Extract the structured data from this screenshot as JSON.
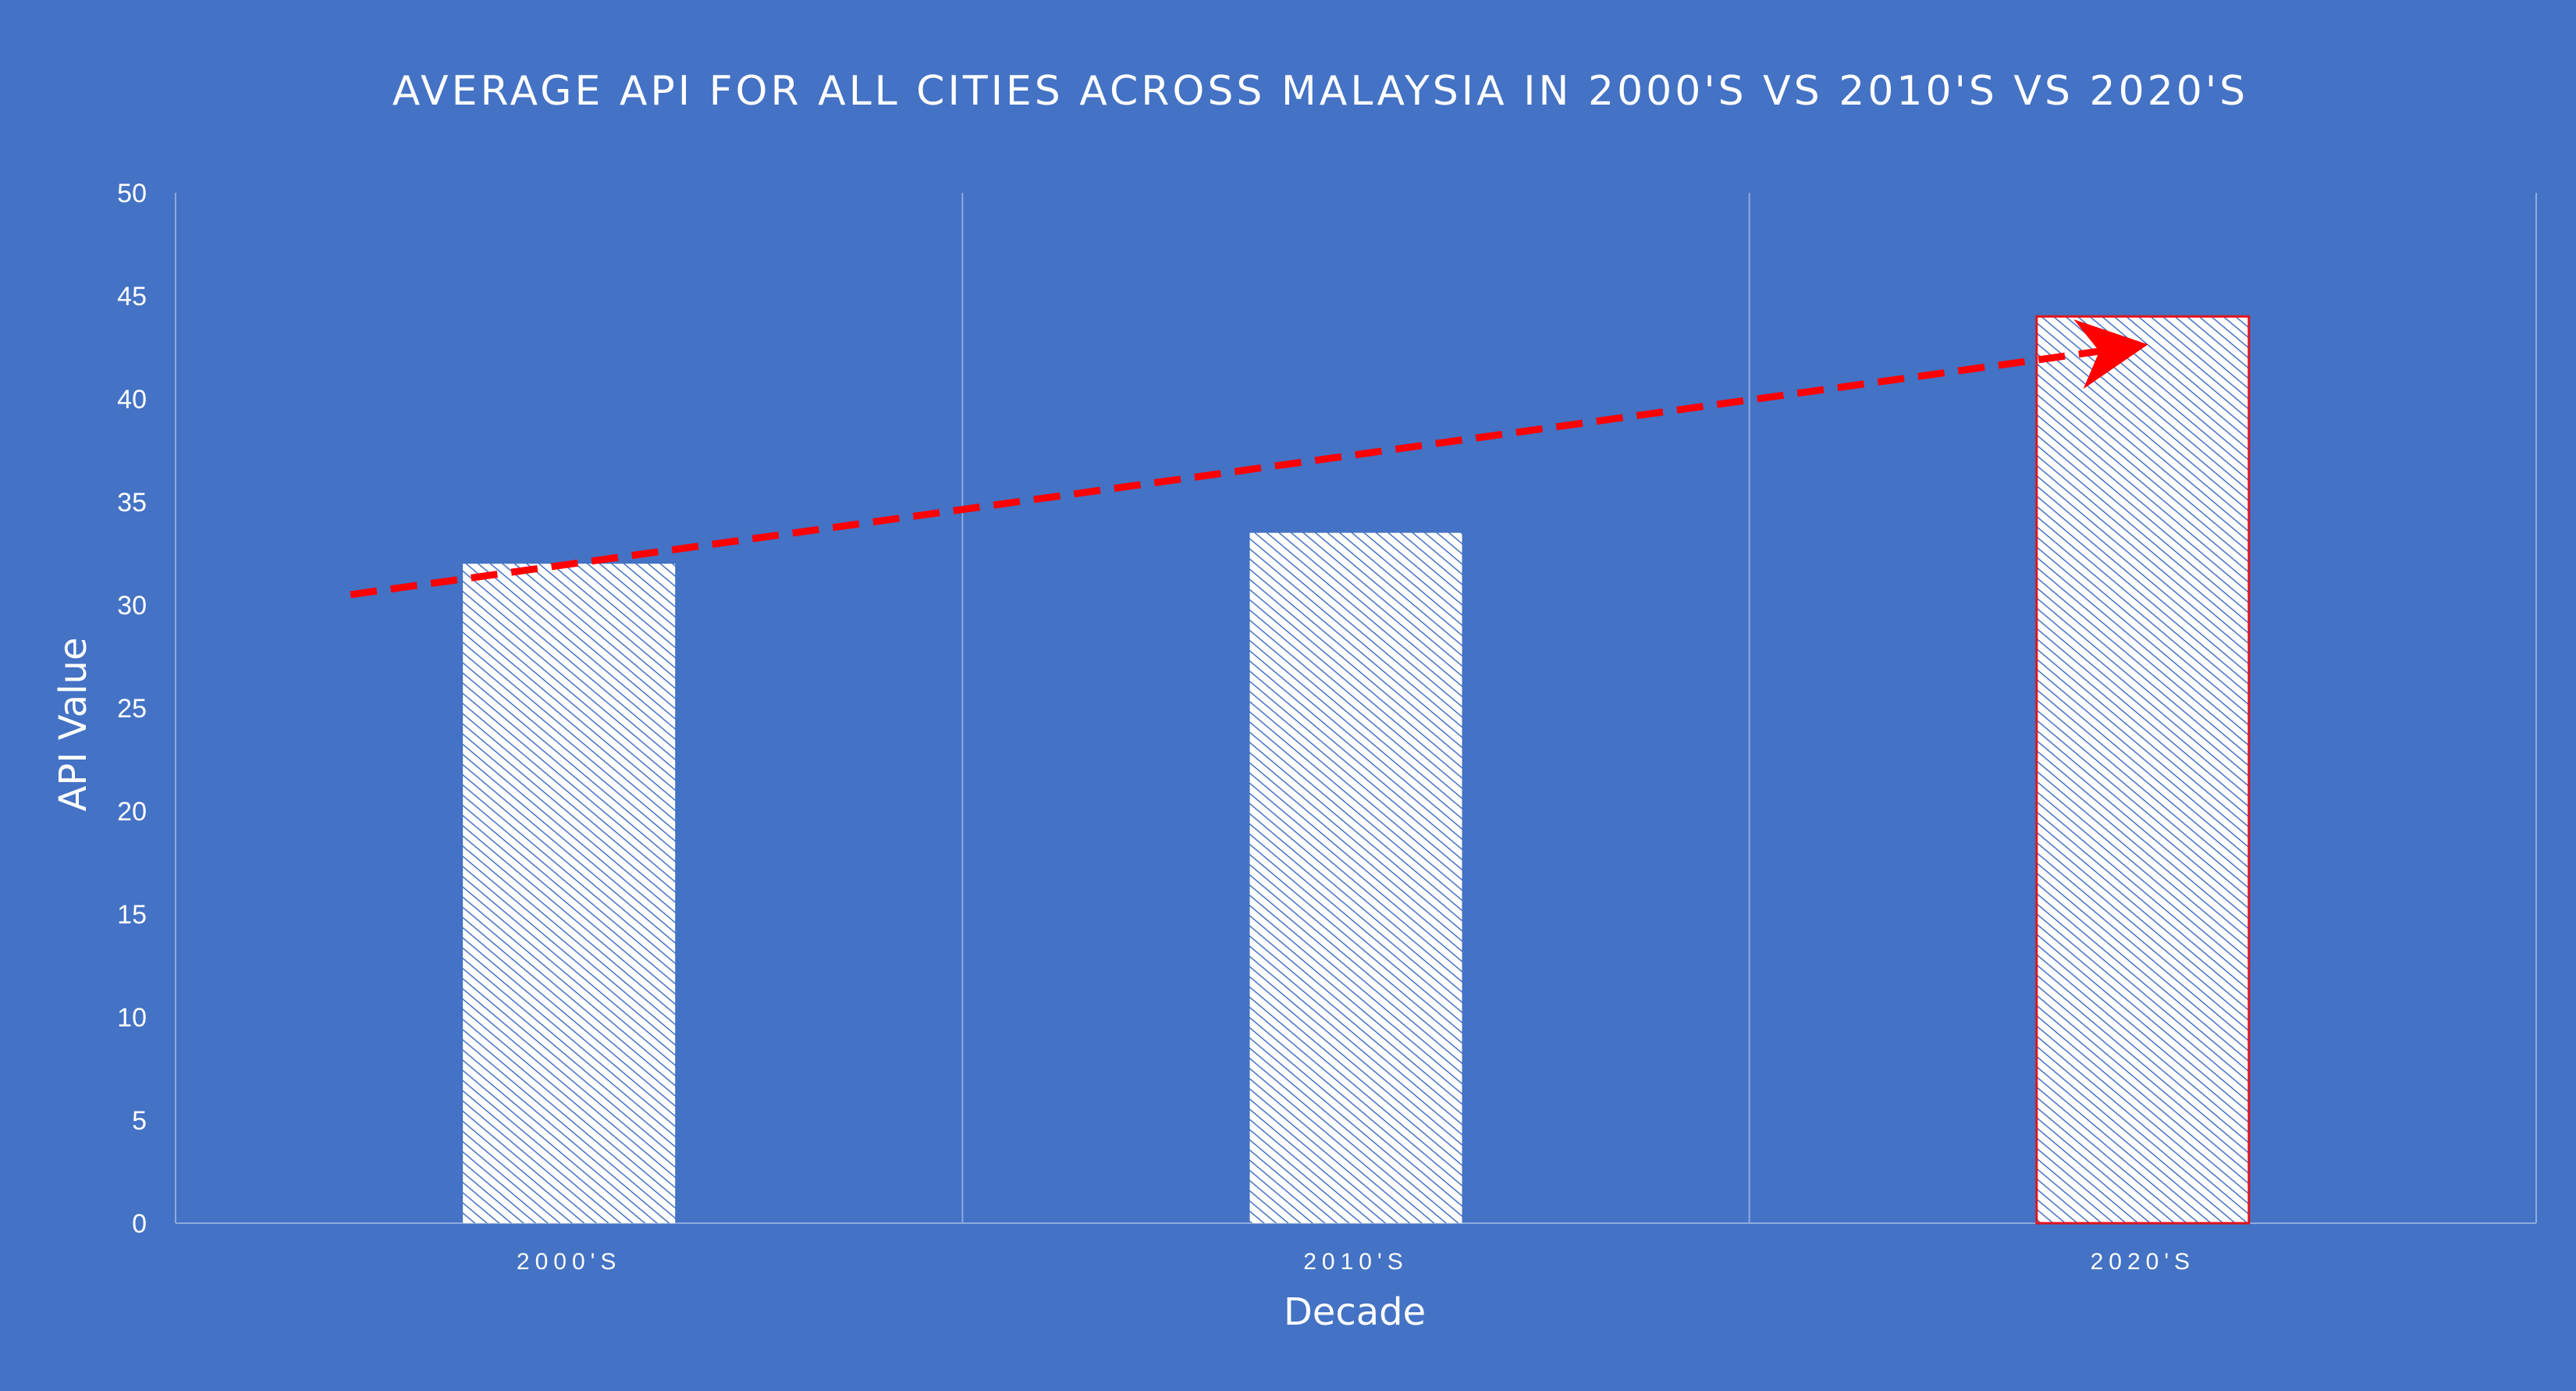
{
  "chart_data": {
    "type": "bar",
    "title": "AVERAGE API FOR ALL CITIES ACROSS MALAYSIA IN 2000'S VS 2010'S VS 2020'S",
    "xlabel": "Decade",
    "ylabel": "API Value",
    "categories": [
      "2000'S",
      "2010'S",
      "2020'S"
    ],
    "values": [
      32,
      33.5,
      44
    ],
    "ylim": [
      0,
      50
    ],
    "yticks": [
      0,
      5,
      10,
      15,
      20,
      25,
      30,
      35,
      40,
      45,
      50
    ],
    "grid": "vertical category separators",
    "highlighted_category": "2020'S",
    "trend_arrow": {
      "from": [
        0,
        30.5
      ],
      "to": [
        2,
        42.5
      ],
      "style": "dashed"
    }
  },
  "colors": {
    "background": "#4472C4",
    "bar_fill": "#ffffff",
    "bar_hatch": "#4472C4",
    "highlight_border": "#E0151D",
    "trend_arrow": "#FF0000",
    "gridline": "#8FAADC"
  }
}
